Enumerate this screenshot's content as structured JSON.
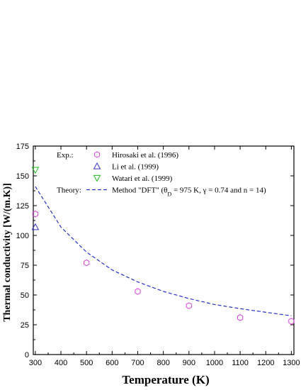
{
  "chart_data": {
    "type": "scatter",
    "xlabel": "Temperature (K)",
    "ylabel": "Thermal conductivity [W/(m.K)]",
    "xlim": [
      292,
      1310
    ],
    "ylim": [
      0,
      175
    ],
    "xticks": [
      300,
      400,
      500,
      600,
      700,
      800,
      900,
      1000,
      1100,
      1200,
      1300
    ],
    "yticks": [
      0,
      25,
      50,
      75,
      100,
      125,
      150,
      175
    ],
    "grid": false,
    "legend_position": "top-left",
    "legend": {
      "exp_label": "Exp.:",
      "theory_label": "Theory:"
    },
    "series": [
      {
        "name": "Hirosaki et al. (1996)",
        "marker": "hexagon",
        "color": "#e040e0",
        "x": [
          300,
          500,
          700,
          900,
          1100,
          1300
        ],
        "y": [
          118,
          77,
          53,
          41,
          31,
          28
        ]
      },
      {
        "name": "Li et al. (1999)",
        "marker": "triangle-up",
        "color": "#3333cc",
        "x": [
          300
        ],
        "y": [
          107
        ]
      },
      {
        "name": "Watari et al. (1999)",
        "marker": "triangle-down",
        "color": "#22bb22",
        "x": [
          300
        ],
        "y": [
          155
        ]
      },
      {
        "name": "Method \"DFT\" (θD = 975 K, γ = 0.74 and n = 14)",
        "style": "dashed-line",
        "color": "#2233cc",
        "x": [
          300,
          400,
          500,
          600,
          700,
          800,
          900,
          1000,
          1100,
          1200,
          1300
        ],
        "y": [
          141,
          107,
          86,
          71,
          61,
          53,
          47,
          42,
          38.5,
          35.5,
          32.5
        ]
      }
    ]
  }
}
